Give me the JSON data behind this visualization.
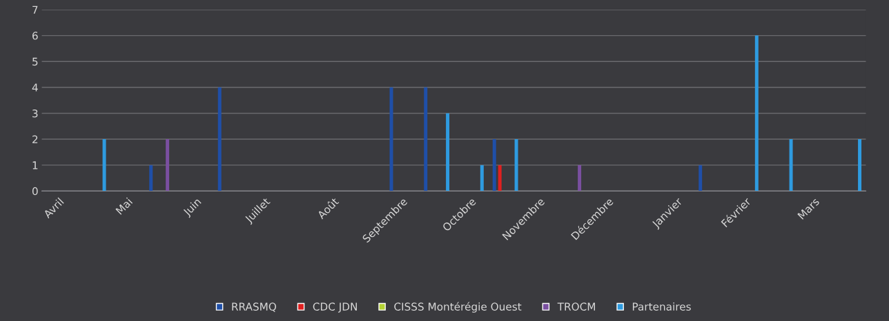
{
  "chart_data": {
    "type": "bar",
    "categories": [
      "Avril",
      null,
      "Mai",
      null,
      "Juin",
      null,
      "Juillet",
      null,
      "Août",
      null,
      "Septembre",
      null,
      "Octobre",
      null,
      "Novembre",
      null,
      "Décembre",
      null,
      "Janvier",
      null,
      "Février",
      null,
      "Mars",
      null
    ],
    "series": [
      {
        "name": "RRASMQ",
        "color": "#1f4fa8",
        "values": [
          0,
          0,
          0,
          1,
          0,
          4,
          0,
          0,
          0,
          0,
          4,
          4,
          0,
          2,
          0,
          0,
          0,
          0,
          0,
          1,
          0,
          0,
          0,
          0
        ]
      },
      {
        "name": "CDC JDN",
        "color": "#e02020",
        "values": [
          0,
          0,
          0,
          0,
          0,
          0,
          0,
          0,
          0,
          0,
          0,
          0,
          0,
          1,
          0,
          0,
          0,
          0,
          0,
          0,
          0,
          0,
          0,
          0
        ]
      },
      {
        "name": "CISSS Montérégie Ouest",
        "color": "#b5d334",
        "values": [
          0,
          0,
          0,
          0,
          0,
          0,
          0,
          0,
          0,
          0,
          0,
          0,
          0,
          0,
          0,
          0,
          0,
          0,
          0,
          0,
          0,
          0,
          0,
          0
        ]
      },
      {
        "name": "TROCM",
        "color": "#7a4fa0",
        "values": [
          0,
          0,
          0,
          2,
          0,
          0,
          0,
          0,
          0,
          0,
          0,
          0,
          0,
          0,
          0,
          1,
          0,
          0,
          0,
          0,
          0,
          0,
          0,
          0
        ]
      },
      {
        "name": "Partenaires",
        "color": "#2e9be0",
        "values": [
          0,
          2,
          0,
          0,
          0,
          0,
          0,
          0,
          0,
          0,
          0,
          3,
          1,
          2,
          0,
          0,
          0,
          0,
          0,
          0,
          6,
          2,
          0,
          2
        ]
      }
    ],
    "ylim": [
      0,
      7
    ],
    "yticks": [
      0,
      1,
      2,
      3,
      4,
      5,
      6,
      7
    ],
    "grid": "y",
    "legend": "bottom"
  }
}
